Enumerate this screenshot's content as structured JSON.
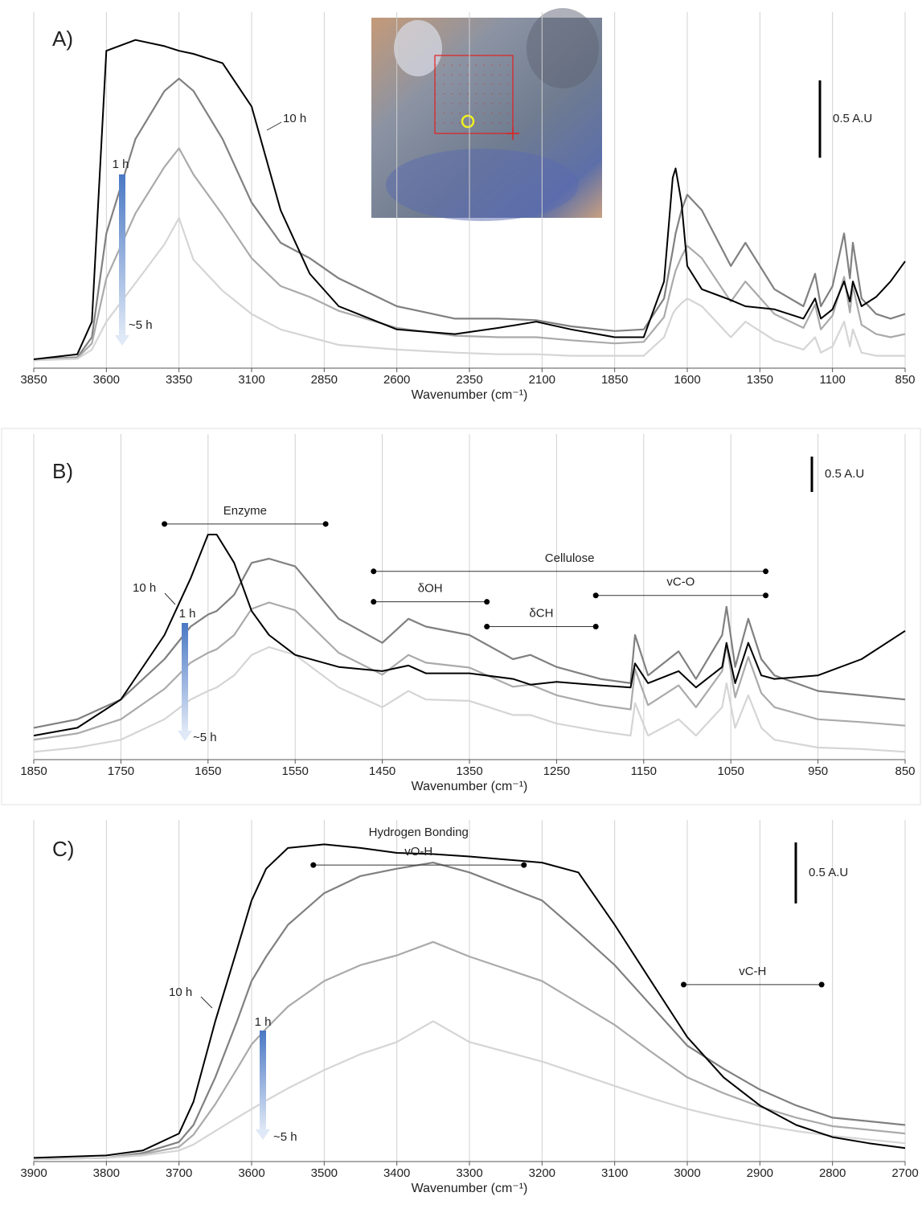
{
  "chart_data": [
    {
      "type": "line",
      "label": "A)",
      "xlabel": "Wavenumber (cm⁻¹)",
      "xlim": [
        3850,
        850
      ],
      "xticks": [
        3850,
        3600,
        3350,
        3100,
        2850,
        2600,
        2350,
        2100,
        1850,
        1600,
        1350,
        1100,
        850
      ],
      "ylim": [
        0,
        2.3
      ],
      "grid": true,
      "scale_bar": {
        "value": 0.5,
        "label": "0.5 A.U"
      },
      "x": [
        3850,
        3700,
        3650,
        3600,
        3500,
        3400,
        3350,
        3300,
        3200,
        3100,
        3000,
        2900,
        2800,
        2600,
        2400,
        2250,
        2120,
        2000,
        1850,
        1750,
        1680,
        1650,
        1640,
        1620,
        1600,
        1550,
        1450,
        1400,
        1300,
        1200,
        1160,
        1140,
        1100,
        1060,
        1040,
        1030,
        1000,
        950,
        900,
        850
      ],
      "series": [
        {
          "name": "1 h",
          "color": "#808080",
          "values": [
            0.057,
            0.07,
            0.2,
            0.87,
            1.48,
            1.79,
            1.87,
            1.79,
            1.48,
            1.07,
            0.81,
            0.71,
            0.58,
            0.4,
            0.32,
            0.32,
            0.31,
            0.27,
            0.24,
            0.25,
            0.45,
            0.76,
            0.87,
            1.02,
            1.12,
            1.02,
            0.66,
            0.81,
            0.51,
            0.4,
            0.61,
            0.4,
            0.53,
            0.87,
            0.58,
            0.81,
            0.45,
            0.35,
            0.32,
            0.35
          ]
        },
        {
          "color": "#aaaaaa",
          "values": [
            0.054,
            0.065,
            0.16,
            0.58,
            1.0,
            1.3,
            1.42,
            1.25,
            0.99,
            0.71,
            0.53,
            0.46,
            0.37,
            0.26,
            0.21,
            0.2,
            0.2,
            0.18,
            0.16,
            0.17,
            0.33,
            0.56,
            0.63,
            0.72,
            0.79,
            0.71,
            0.43,
            0.56,
            0.35,
            0.26,
            0.41,
            0.25,
            0.34,
            0.59,
            0.36,
            0.53,
            0.28,
            0.22,
            0.2,
            0.22
          ]
        },
        {
          "name": "~5 h",
          "color": "#d5d5d5",
          "values": [
            0.05,
            0.06,
            0.12,
            0.3,
            0.55,
            0.8,
            0.97,
            0.7,
            0.5,
            0.35,
            0.25,
            0.2,
            0.15,
            0.12,
            0.1,
            0.09,
            0.09,
            0.08,
            0.08,
            0.08,
            0.2,
            0.35,
            0.38,
            0.42,
            0.45,
            0.4,
            0.2,
            0.3,
            0.18,
            0.12,
            0.2,
            0.1,
            0.14,
            0.3,
            0.14,
            0.25,
            0.1,
            0.08,
            0.08,
            0.08
          ]
        },
        {
          "name": "10 h",
          "color": "#000000",
          "values": [
            0.057,
            0.09,
            0.3,
            2.05,
            2.12,
            2.08,
            2.05,
            2.03,
            1.97,
            1.69,
            1.02,
            0.61,
            0.4,
            0.25,
            0.22,
            0.26,
            0.3,
            0.25,
            0.2,
            0.2,
            0.56,
            1.23,
            1.29,
            1.07,
            0.66,
            0.51,
            0.44,
            0.4,
            0.38,
            0.32,
            0.45,
            0.32,
            0.38,
            0.56,
            0.43,
            0.56,
            0.4,
            0.46,
            0.56,
            0.69
          ]
        }
      ],
      "ranges": []
    },
    {
      "type": "line",
      "label": "B)",
      "xlabel": "Wavenumber (cm⁻¹)",
      "xlim": [
        1850,
        850
      ],
      "xticks": [
        1850,
        1750,
        1650,
        1550,
        1450,
        1350,
        1250,
        1150,
        1050,
        950,
        850
      ],
      "ylim": [
        0,
        4.6
      ],
      "grid": true,
      "scale_bar": {
        "value": 0.5,
        "label": "0.5 A.U"
      },
      "x": [
        1850,
        1800,
        1750,
        1700,
        1670,
        1650,
        1640,
        1620,
        1600,
        1580,
        1550,
        1500,
        1450,
        1420,
        1400,
        1350,
        1300,
        1280,
        1250,
        1200,
        1165,
        1160,
        1145,
        1110,
        1090,
        1060,
        1055,
        1045,
        1030,
        1015,
        1000,
        950,
        900,
        850
      ],
      "series": [
        {
          "name": "1 h",
          "color": "#808080",
          "values": [
            0.45,
            0.57,
            0.85,
            1.42,
            1.88,
            2.05,
            2.1,
            2.33,
            2.78,
            2.84,
            2.73,
            1.99,
            1.65,
            1.99,
            1.88,
            1.76,
            1.42,
            1.48,
            1.31,
            1.14,
            1.08,
            1.76,
            1.19,
            1.53,
            1.14,
            1.76,
            2.16,
            1.31,
            1.99,
            1.42,
            1.19,
            0.97,
            0.91,
            0.85
          ]
        },
        {
          "color": "#aaaaaa",
          "values": [
            0.28,
            0.37,
            0.57,
            1.0,
            1.37,
            1.51,
            1.56,
            1.76,
            2.13,
            2.22,
            2.11,
            1.51,
            1.2,
            1.48,
            1.37,
            1.3,
            1.03,
            1.06,
            0.91,
            0.77,
            0.71,
            1.28,
            0.77,
            1.05,
            0.74,
            1.25,
            1.62,
            0.88,
            1.45,
            0.94,
            0.74,
            0.57,
            0.53,
            0.48
          ]
        },
        {
          "name": "~5 h",
          "color": "#d5d5d5",
          "values": [
            0.11,
            0.17,
            0.28,
            0.57,
            0.85,
            0.97,
            1.02,
            1.19,
            1.48,
            1.59,
            1.48,
            1.02,
            0.74,
            0.97,
            0.85,
            0.83,
            0.63,
            0.63,
            0.51,
            0.4,
            0.34,
            0.8,
            0.34,
            0.57,
            0.34,
            0.74,
            1.08,
            0.45,
            0.91,
            0.45,
            0.28,
            0.17,
            0.15,
            0.11
          ]
        },
        {
          "name": "10 h",
          "color": "#000000",
          "values": [
            0.34,
            0.45,
            0.85,
            1.76,
            2.56,
            3.18,
            3.18,
            2.78,
            2.1,
            1.76,
            1.48,
            1.31,
            1.25,
            1.33,
            1.22,
            1.22,
            1.14,
            1.06,
            1.1,
            1.05,
            1.02,
            1.36,
            1.08,
            1.25,
            1.02,
            1.31,
            1.65,
            1.08,
            1.65,
            1.19,
            1.14,
            1.19,
            1.42,
            1.82
          ]
        }
      ],
      "ranges": [
        {
          "label": "Enzyme",
          "from": 1700,
          "to": 1515,
          "level": 3.33
        },
        {
          "label": "Cellulose",
          "from": 1460,
          "to": 1010,
          "level": 2.66
        },
        {
          "label": "δOH",
          "from": 1460,
          "to": 1330,
          "level": 2.23
        },
        {
          "label": "vC-O",
          "from": 1205,
          "to": 1010,
          "level": 2.32
        },
        {
          "label": "δCH",
          "from": 1330,
          "to": 1205,
          "level": 1.88
        }
      ]
    },
    {
      "type": "line",
      "label": "C)",
      "xlabel": "Wavenumber (cm⁻¹)",
      "xlim": [
        3900,
        2700
      ],
      "xticks": [
        3900,
        3800,
        3700,
        3600,
        3500,
        3400,
        3300,
        3200,
        3100,
        3000,
        2900,
        2800,
        2700
      ],
      "ylim": [
        0,
        2.8
      ],
      "grid": true,
      "scale_bar": {
        "value": 0.5,
        "label": "0.5 A.U"
      },
      "x": [
        3900,
        3800,
        3750,
        3700,
        3680,
        3650,
        3620,
        3600,
        3580,
        3550,
        3500,
        3450,
        3400,
        3350,
        3300,
        3200,
        3150,
        3100,
        3050,
        3000,
        2950,
        2900,
        2850,
        2800,
        2750,
        2700
      ],
      "series": [
        {
          "name": "1 h",
          "color": "#808080",
          "values": [
            0.02,
            0.03,
            0.07,
            0.16,
            0.3,
            0.69,
            1.15,
            1.48,
            1.68,
            1.94,
            2.2,
            2.34,
            2.4,
            2.45,
            2.37,
            2.14,
            1.88,
            1.61,
            1.28,
            0.95,
            0.76,
            0.59,
            0.46,
            0.36,
            0.33,
            0.3
          ]
        },
        {
          "color": "#aaaaaa",
          "values": [
            0.02,
            0.03,
            0.06,
            0.12,
            0.22,
            0.47,
            0.76,
            0.96,
            1.09,
            1.27,
            1.48,
            1.61,
            1.69,
            1.8,
            1.68,
            1.48,
            1.3,
            1.12,
            0.9,
            0.69,
            0.56,
            0.45,
            0.36,
            0.29,
            0.26,
            0.23
          ]
        },
        {
          "name": "~5 h",
          "color": "#d5d5d5",
          "values": [
            0.02,
            0.03,
            0.05,
            0.09,
            0.14,
            0.25,
            0.36,
            0.43,
            0.5,
            0.6,
            0.75,
            0.88,
            0.98,
            1.15,
            0.98,
            0.82,
            0.72,
            0.62,
            0.52,
            0.43,
            0.36,
            0.3,
            0.25,
            0.21,
            0.18,
            0.15
          ]
        },
        {
          "name": "10 h",
          "color": "#000000",
          "values": [
            0.03,
            0.05,
            0.09,
            0.23,
            0.49,
            1.15,
            1.74,
            2.14,
            2.4,
            2.57,
            2.6,
            2.57,
            2.53,
            2.52,
            2.5,
            2.45,
            2.37,
            1.94,
            1.48,
            1.02,
            0.69,
            0.46,
            0.3,
            0.2,
            0.15,
            0.11
          ]
        }
      ],
      "ranges": [
        {
          "title": "Hydrogen Bonding",
          "label": "vO-H",
          "from": 3515,
          "to": 3225,
          "level": 2.43
        },
        {
          "label": "vC-H",
          "from": 3005,
          "to": 2815,
          "level": 1.45
        }
      ]
    }
  ]
}
